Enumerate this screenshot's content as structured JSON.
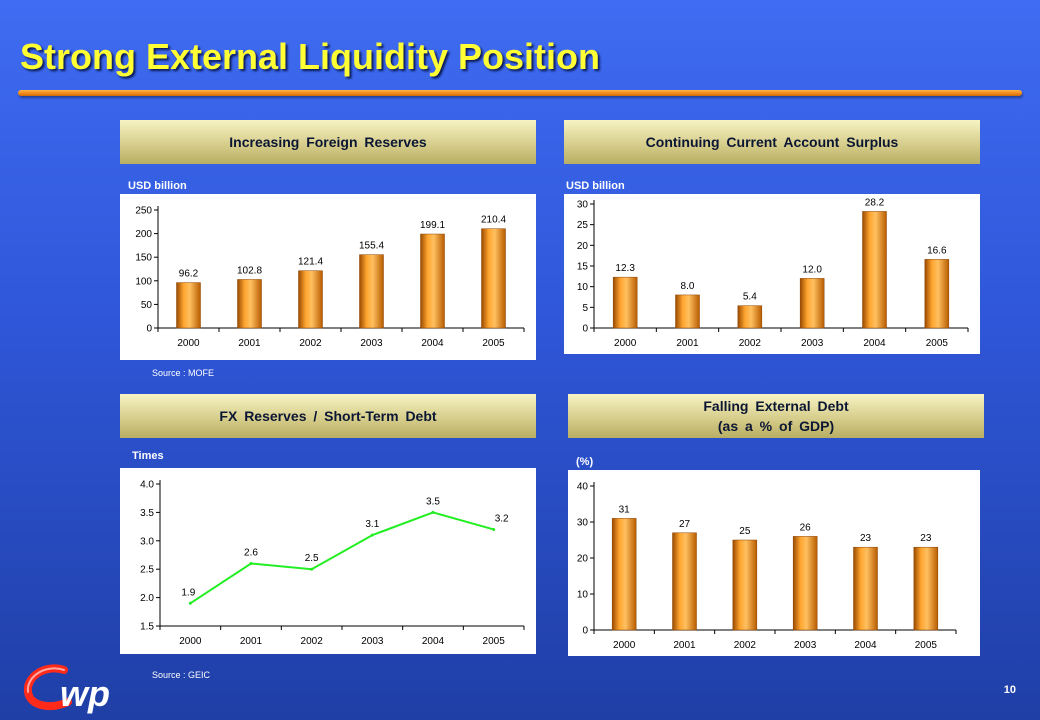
{
  "slide": {
    "title": "Strong External Liquidity Position",
    "page_number": "10",
    "accent_color": "#f28a1a",
    "title_color": "#ffff33",
    "logo_icon": "cwp-logo"
  },
  "panels": [
    {
      "header": "Increasing Foreign Reserves",
      "unit": "USD billion",
      "source": "Source : MOFE"
    },
    {
      "header": "Continuing Current Account Surplus",
      "unit": "USD billion",
      "source": ""
    },
    {
      "header": "FX Reserves / Short-Term Debt",
      "unit": "Times",
      "source": "Source : GEIC"
    },
    {
      "header_line1": "Falling External Debt",
      "header_line2": "(as a % of GDP)",
      "unit": "(%)",
      "source": ""
    }
  ],
  "chart_data": [
    {
      "type": "bar",
      "categories": [
        "2000",
        "2001",
        "2002",
        "2003",
        "2004",
        "2005"
      ],
      "values": [
        96.2,
        102.8,
        121.4,
        155.4,
        199.1,
        210.4
      ],
      "data_labels": [
        "96.2",
        "102.8",
        "121.4",
        "155.4",
        "199.1",
        "210.4"
      ],
      "ylim": [
        0,
        250
      ],
      "yticks": [
        0,
        50,
        100,
        150,
        200,
        250
      ],
      "color": "#e07b10"
    },
    {
      "type": "bar",
      "categories": [
        "2000",
        "2001",
        "2002",
        "2003",
        "2004",
        "2005"
      ],
      "values": [
        12.3,
        8.0,
        5.4,
        12.0,
        28.2,
        16.6
      ],
      "data_labels": [
        "12.3",
        "8.0",
        "5.4",
        "12.0",
        "28.2",
        "16.6"
      ],
      "ylim": [
        0,
        30
      ],
      "yticks": [
        0,
        5,
        10,
        15,
        20,
        25,
        30
      ],
      "color": "#e07b10"
    },
    {
      "type": "line",
      "categories": [
        "2000",
        "2001",
        "2002",
        "2003",
        "2004",
        "2005"
      ],
      "values": [
        1.9,
        2.6,
        2.5,
        3.1,
        3.5,
        3.2
      ],
      "data_labels": [
        "1.9",
        "2.6",
        "2.5",
        "3.1",
        "3.5",
        "3.2"
      ],
      "ylim": [
        1.5,
        4.0
      ],
      "yticks": [
        "1.5",
        "2.0",
        "2.5",
        "3.0",
        "3.5",
        "4.0"
      ],
      "color": "#22ee22"
    },
    {
      "type": "bar",
      "categories": [
        "2000",
        "2001",
        "2002",
        "2003",
        "2004",
        "2005"
      ],
      "values": [
        31,
        27,
        25,
        26,
        23,
        23
      ],
      "data_labels": [
        "31",
        "27",
        "25",
        "26",
        "23",
        "23"
      ],
      "ylim": [
        0,
        40
      ],
      "yticks": [
        0,
        10,
        20,
        30,
        40
      ],
      "color": "#e07b10"
    }
  ]
}
